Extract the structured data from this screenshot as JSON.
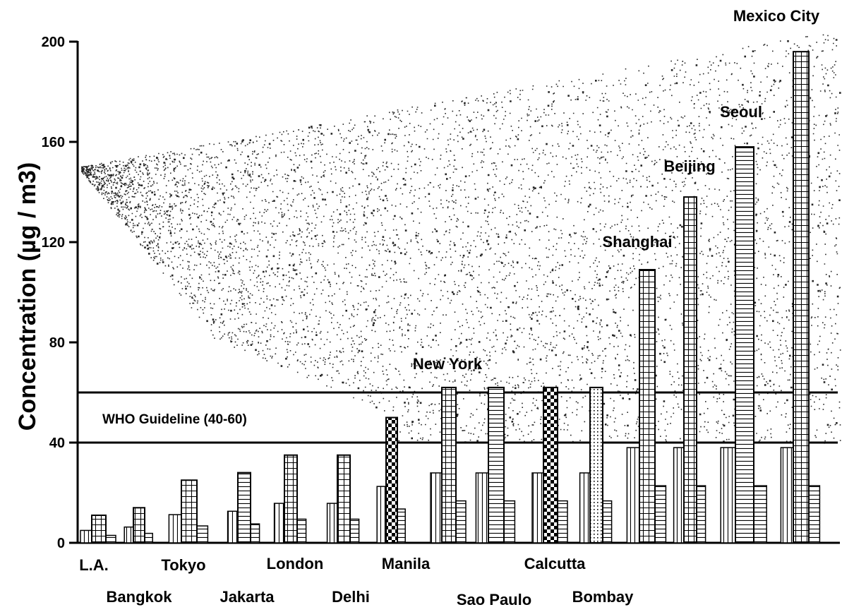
{
  "chart_data": {
    "type": "bar",
    "ylabel": "Concentration (µg / m3)",
    "ylim": [
      0,
      200
    ],
    "yticks": [
      0,
      40,
      80,
      120,
      160,
      200
    ],
    "grid": false,
    "guideline": {
      "label": "WHO Guideline (40-60)",
      "low": 40,
      "high": 60
    },
    "categories": [
      "L.A.",
      "Bangkok",
      "Tokyo",
      "Jakarta",
      "London",
      "Delhi",
      "Manila",
      "New York",
      "Sao Paulo",
      "Calcutta",
      "Bombay",
      "Shanghai",
      "Beijing",
      "Seoul",
      "Mexico City"
    ],
    "values": [
      11,
      14,
      25,
      28,
      35,
      35,
      50,
      62,
      62,
      62,
      62,
      109,
      138,
      158,
      196
    ]
  }
}
